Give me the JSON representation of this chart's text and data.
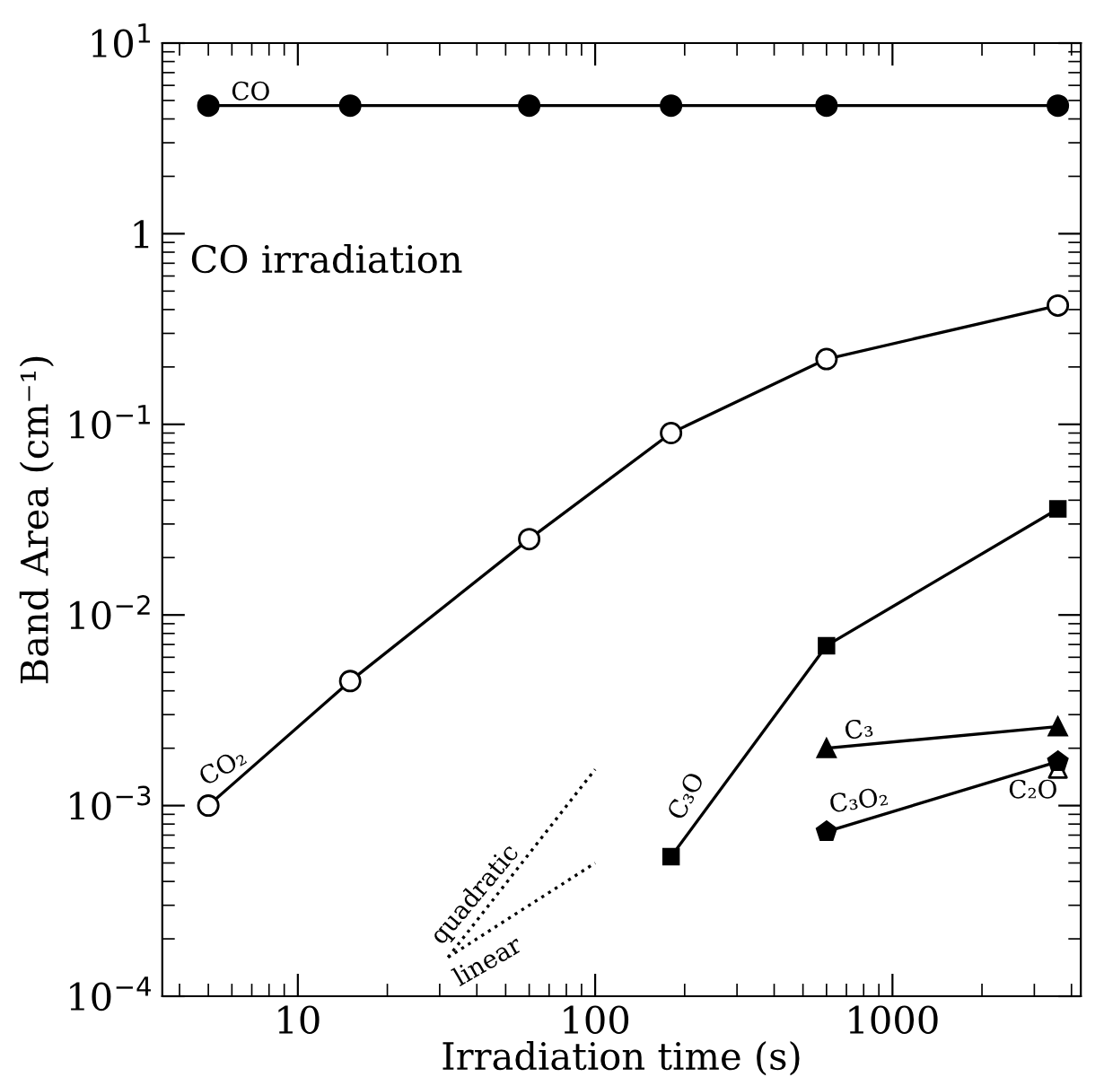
{
  "chart_data": {
    "type": "line",
    "xlabel": "Irradiation time (s)",
    "ylabel": "Band Area (cm⁻¹)",
    "log": "xy",
    "xlim": [
      3.5,
      4300
    ],
    "ylim": [
      0.0001,
      10
    ],
    "xticks": [
      10,
      100,
      1000
    ],
    "yticks": [
      {
        "value": 0.0001,
        "label": "10$^{−4}$"
      },
      {
        "value": 0.001,
        "label": "10$^{−3}$"
      },
      {
        "value": 0.01,
        "label": "10$^{−2}$"
      },
      {
        "value": 0.1,
        "label": "10$^{−1}$"
      },
      {
        "value": 1,
        "label": "1"
      },
      {
        "value": 10,
        "label": "10$^{1}$"
      }
    ],
    "grid": false,
    "series": [
      {
        "name": "CO",
        "color": "#000000",
        "marker": "circle",
        "line_style": "solid",
        "x": [
          5,
          15,
          60,
          180,
          600,
          3600
        ],
        "values": [
          4.7,
          4.7,
          4.7,
          4.7,
          4.7,
          4.7
        ]
      },
      {
        "name": "CO₂",
        "color": "#000000",
        "marker": "circle",
        "line_style": "solid",
        "x": [
          5,
          15,
          60,
          180,
          600,
          3600
        ],
        "values": [
          0.001,
          0.0045,
          0.025,
          0.09,
          0.22,
          0.42
        ]
      },
      {
        "name": "C₃O",
        "color": "#000000",
        "marker": "square",
        "line_style": "solid",
        "x": [
          180,
          600,
          3600
        ],
        "values": [
          0.00054,
          0.0069,
          0.036
        ]
      },
      {
        "name": "C₃",
        "color": "#000000",
        "marker": "triangle",
        "line_style": "solid",
        "x": [
          600,
          3600
        ],
        "values": [
          0.002,
          0.0026
        ]
      },
      {
        "name": "C₂O",
        "type": "scatter",
        "color": "#000000",
        "marker": "triangle",
        "x": [
          3600
        ],
        "values": [
          0.00156
        ]
      },
      {
        "name": "C₃O₂",
        "color": "#000000",
        "marker": "circle",
        "line_style": "solid",
        "x": [
          600,
          3600
        ],
        "values": [
          0.00073,
          0.0017
        ]
      },
      {
        "name": "quadratic",
        "color": "#000000",
        "marker": "none",
        "line_style": "dotted",
        "x": [
          32,
          100
        ],
        "values": [
          0.00016,
          0.00155
        ]
      },
      {
        "name": "linear",
        "color": "#000000",
        "marker": "none",
        "line_style": "dotted",
        "x": [
          32,
          100
        ],
        "values": [
          0.00016,
          0.0005
        ]
      }
    ],
    "annotations": [
      "CO irradiation"
    ]
  }
}
